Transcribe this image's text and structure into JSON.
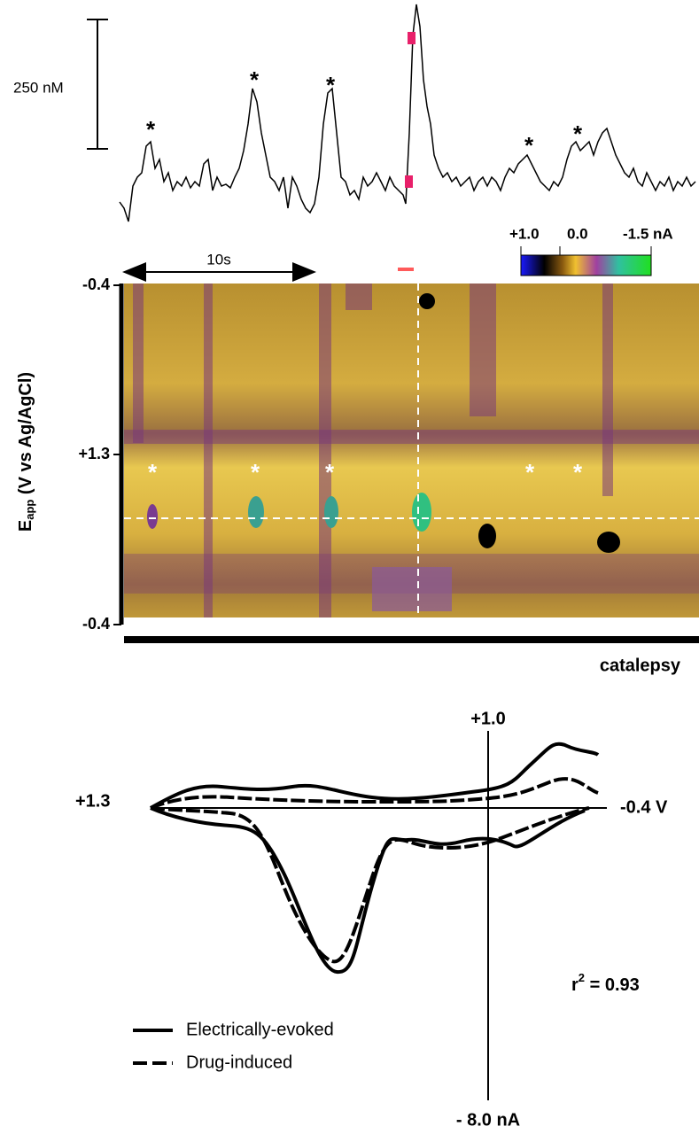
{
  "scale_bar": {
    "label": "250 nM"
  },
  "top_peaks": [
    "*",
    "*",
    "*",
    "*",
    "*"
  ],
  "time_bar": {
    "label": "10s"
  },
  "colorbar": {
    "labels": [
      "+1.0",
      "0.0",
      "-1.5 nA"
    ]
  },
  "color_plot": {
    "y_labels": [
      "-0.4",
      "+1.3",
      "-0.4"
    ],
    "axis_title": {
      "main": "E",
      "sub": "app",
      "rest": " (V vs Ag/AgCl)"
    },
    "peaks": [
      "*",
      "*",
      "*",
      "*",
      "*"
    ],
    "bar_label": "catalepsy"
  },
  "cv_plot": {
    "top_label": "+1.0",
    "left_label": "+1.3",
    "right_label": "-0.4 V",
    "bottom_label": "- 8.0 nA",
    "fit": {
      "main": "r",
      "sup": "2",
      "rest": " = 0.93"
    },
    "legend": [
      "Electrically-evoked",
      "Drug-induced"
    ]
  }
}
